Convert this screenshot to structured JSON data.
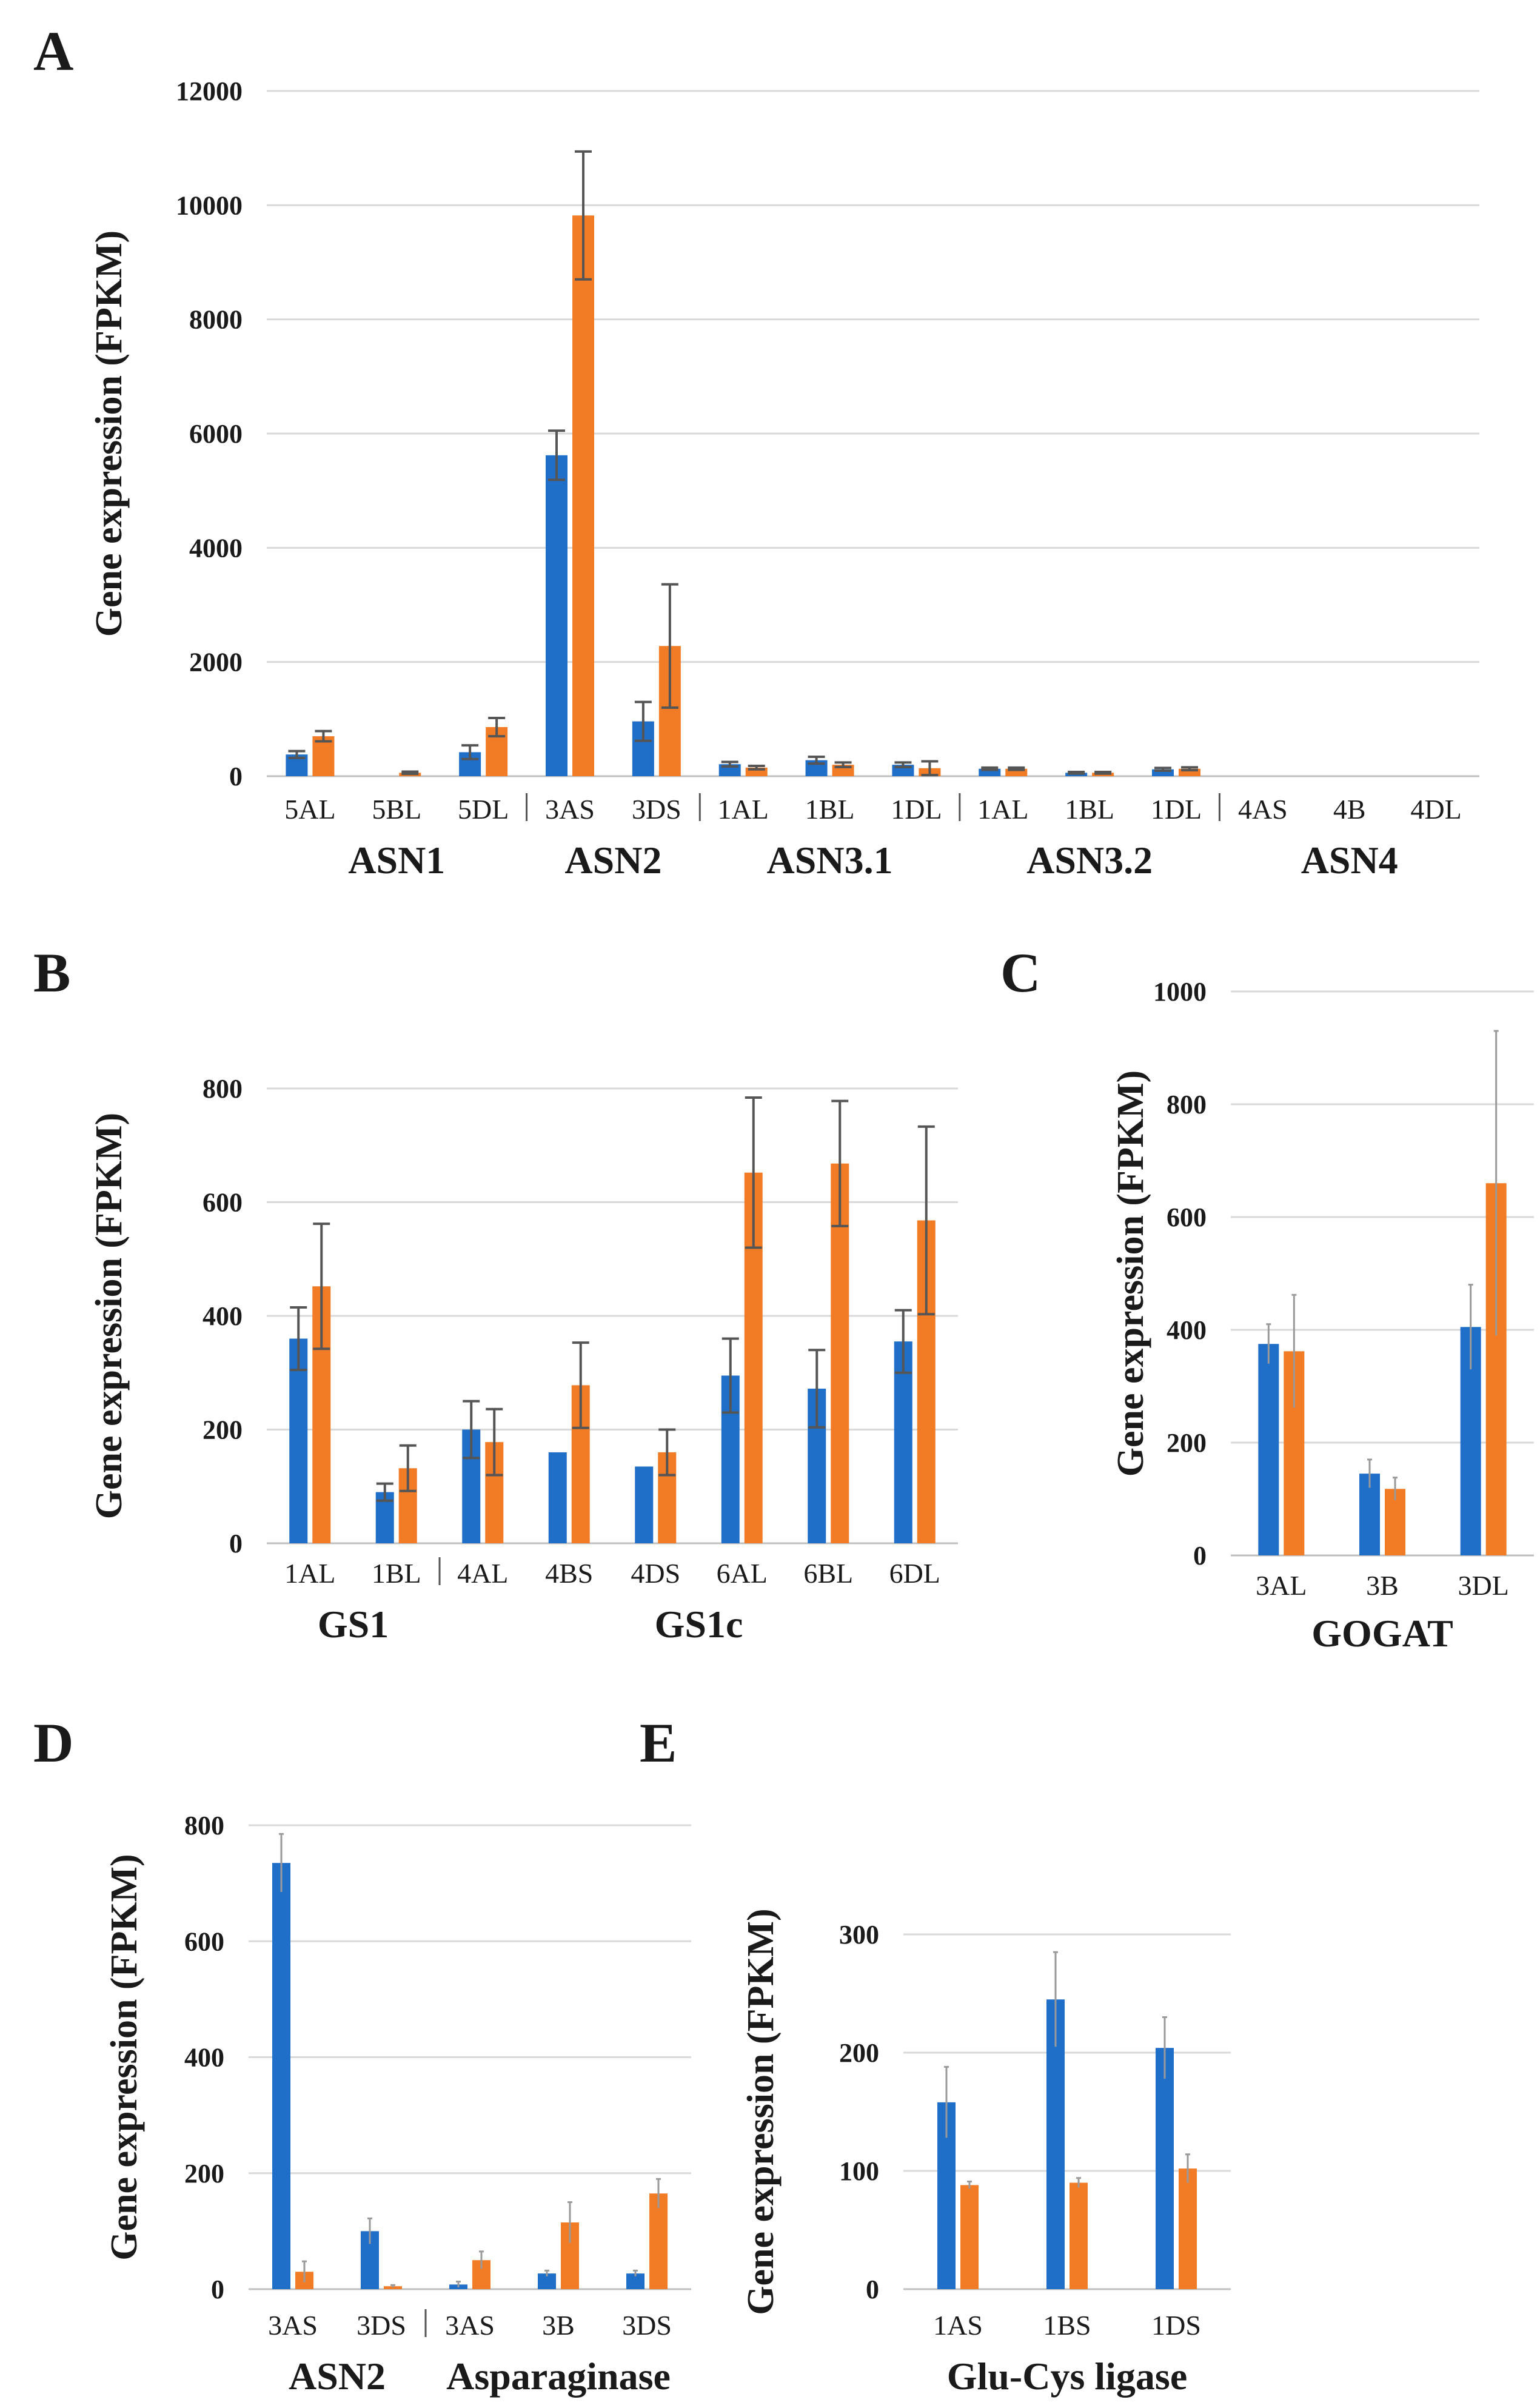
{
  "colors": {
    "series1": "#1f6fc9",
    "series2": "#f27c26",
    "grid": "#d9d9d9",
    "error": "#555555"
  },
  "chart_data": [
    {
      "type": "bar",
      "panel": "A",
      "ylabel": "Gene expression (FPKM)",
      "ylim": [
        0,
        12000
      ],
      "yticks": [
        0,
        2000,
        4000,
        6000,
        8000,
        10000,
        12000
      ],
      "categories": [
        "5AL",
        "5BL",
        "5DL",
        "3AS",
        "3DS",
        "1AL",
        "1BL",
        "1DL",
        "1AL",
        "1BL",
        "1DL",
        "4AS",
        "4B",
        "4DL"
      ],
      "separators_after": [
        2,
        4,
        7,
        10
      ],
      "groups": [
        {
          "label": "ASN1",
          "from": 0,
          "to": 2
        },
        {
          "label": "ASN2",
          "from": 3,
          "to": 4
        },
        {
          "label": "ASN3.1",
          "from": 5,
          "to": 7
        },
        {
          "label": "ASN3.2",
          "from": 8,
          "to": 10
        },
        {
          "label": "ASN4",
          "from": 11,
          "to": 13
        }
      ],
      "series": [
        {
          "values": [
            380,
            0,
            420,
            5620,
            960,
            210,
            280,
            200,
            130,
            60,
            120,
            0,
            0,
            0
          ],
          "errors": [
            60,
            0,
            120,
            430,
            340,
            40,
            60,
            40,
            20,
            15,
            25,
            0,
            0,
            0
          ]
        },
        {
          "values": [
            700,
            60,
            860,
            9820,
            2280,
            150,
            200,
            140,
            130,
            60,
            130,
            0,
            0,
            0
          ],
          "errors": [
            90,
            20,
            160,
            1120,
            1080,
            30,
            40,
            120,
            20,
            15,
            25,
            0,
            0,
            0
          ]
        }
      ]
    },
    {
      "type": "bar",
      "panel": "B",
      "ylabel": "Gene expression (FPKM)",
      "ylim": [
        0,
        800
      ],
      "yticks": [
        0,
        200,
        400,
        600,
        800
      ],
      "categories": [
        "1AL",
        "1BL",
        "4AL",
        "4BS",
        "4DS",
        "6AL",
        "6BL",
        "6DL"
      ],
      "separators_after": [
        1
      ],
      "groups": [
        {
          "label": "GS1",
          "from": 0,
          "to": 1
        },
        {
          "label": "GS1c",
          "from": 2,
          "to": 7
        }
      ],
      "series": [
        {
          "values": [
            360,
            90,
            200,
            160,
            135,
            295,
            272,
            355
          ],
          "errors": [
            55,
            15,
            50,
            0,
            0,
            65,
            68,
            55
          ]
        },
        {
          "values": [
            452,
            132,
            178,
            278,
            160,
            652,
            668,
            568
          ],
          "errors": [
            110,
            40,
            58,
            75,
            40,
            132,
            110,
            165
          ]
        }
      ]
    },
    {
      "type": "bar",
      "panel": "C",
      "ylabel": "Gene expression (FPKM)",
      "ylim": [
        0,
        1000
      ],
      "yticks": [
        0,
        200,
        400,
        600,
        800,
        1000
      ],
      "categories": [
        "3AL",
        "3B",
        "3DL"
      ],
      "separators_after": [],
      "groups": [
        {
          "label": "GOGAT",
          "from": 0,
          "to": 2
        }
      ],
      "series": [
        {
          "values": [
            375,
            145,
            405
          ],
          "errors": [
            35,
            25,
            75
          ]
        },
        {
          "values": [
            362,
            118,
            660
          ],
          "errors": [
            100,
            20,
            270
          ]
        }
      ]
    },
    {
      "type": "bar",
      "panel": "D",
      "ylabel": "Gene expression (FPKM)",
      "ylim": [
        0,
        800
      ],
      "yticks": [
        0,
        200,
        400,
        600,
        800
      ],
      "categories": [
        "3AS",
        "3DS",
        "3AS",
        "3B",
        "3DS"
      ],
      "separators_after": [
        1
      ],
      "groups": [
        {
          "label": "ASN2",
          "from": 0,
          "to": 1
        },
        {
          "label": "Asparaginase",
          "from": 2,
          "to": 4
        }
      ],
      "series": [
        {
          "values": [
            735,
            100,
            8,
            27,
            27
          ],
          "errors": [
            50,
            22,
            5,
            5,
            5
          ]
        },
        {
          "values": [
            30,
            5,
            50,
            115,
            165
          ],
          "errors": [
            18,
            2,
            15,
            35,
            25
          ]
        }
      ]
    },
    {
      "type": "bar",
      "panel": "E",
      "ylabel": "Gene expression (FPKM)",
      "ylim": [
        0,
        300
      ],
      "yticks": [
        0,
        100,
        200,
        300
      ],
      "categories": [
        "1AS",
        "1BS",
        "1DS"
      ],
      "separators_after": [],
      "groups": [
        {
          "label": "Glu-Cys ligase",
          "from": 0,
          "to": 2
        }
      ],
      "series": [
        {
          "values": [
            158,
            245,
            204
          ],
          "errors": [
            30,
            40,
            26
          ]
        },
        {
          "values": [
            88,
            90,
            102
          ],
          "errors": [
            3,
            4,
            12
          ]
        }
      ]
    }
  ]
}
